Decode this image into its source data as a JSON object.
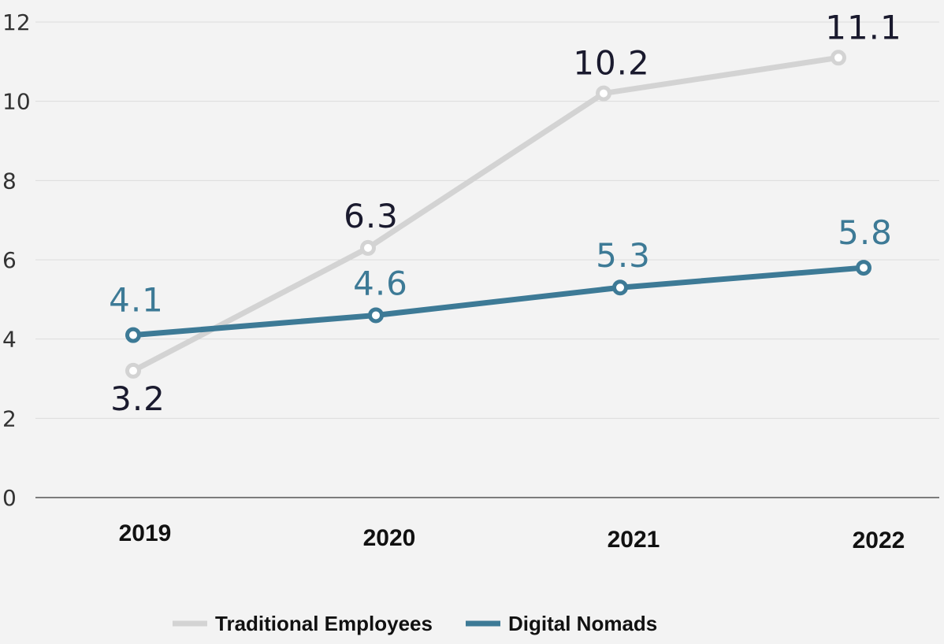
{
  "chart_data": {
    "type": "line",
    "categories": [
      "2019",
      "2020",
      "2021",
      "2022"
    ],
    "ylim": [
      0,
      12
    ],
    "yticks": [
      0,
      2,
      4,
      6,
      8,
      10,
      12
    ],
    "grid": true,
    "legend_position": "bottom",
    "series": [
      {
        "name": "Traditional Employees",
        "values": [
          3.2,
          6.3,
          10.2,
          11.1
        ],
        "labels": [
          "3.2",
          "6.3",
          "10.2",
          "11.1"
        ],
        "color": "#d3d3d3",
        "label_color": "#1a1a2e"
      },
      {
        "name": "Digital Nomads",
        "values": [
          4.1,
          4.6,
          5.3,
          5.8
        ],
        "labels": [
          "4.1",
          "4.6",
          "5.3",
          "5.8"
        ],
        "color": "#3d7a96",
        "label_color": "#3d7a96"
      }
    ]
  }
}
